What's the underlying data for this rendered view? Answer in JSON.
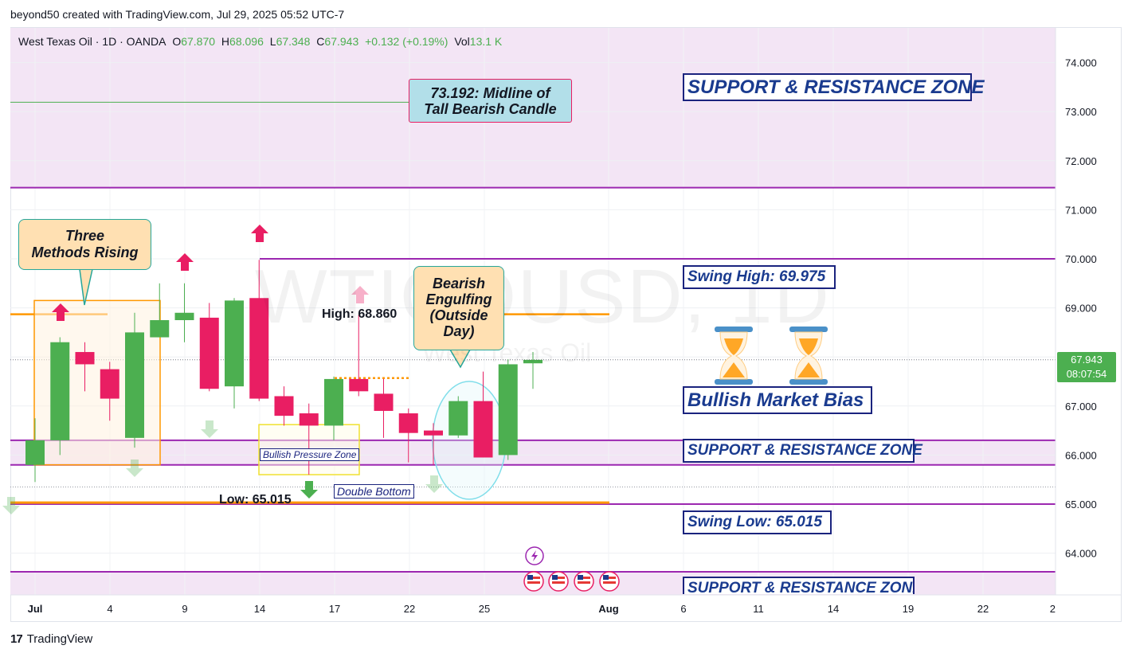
{
  "credit": "beyond50 created with TradingView.com, Jul 29, 2025 05:52 UTC-7",
  "legend": {
    "symbol": "West Texas Oil · 1D · OANDA",
    "open_label": "O",
    "open": "67.870",
    "high_label": "H",
    "high": "68.096",
    "low_label": "L",
    "low": "67.348",
    "close_label": "C",
    "close": "67.943",
    "change": "+0.132 (+0.19%)",
    "vol_label": "Vol",
    "vol": "13.1 K"
  },
  "watermark": {
    "symbol": "WTICOUSD, 1D",
    "name": "West Texas Oil"
  },
  "price_tag": {
    "price": "67.943",
    "countdown": "08:07:54"
  },
  "footer": {
    "logo": "17",
    "brand": "TradingView"
  },
  "annotations": {
    "midline": "73.192: Midline of Tall Bearish Candle",
    "midline_l1": "73.192: Midline of",
    "midline_l2": "Tall Bearish Candle",
    "three_methods_l1": "Three",
    "three_methods_l2": "Methods Rising",
    "bearish_l1": "Bearish",
    "bearish_l2": "Engulfing",
    "bearish_l3": "(Outside",
    "bearish_l4": "Day)",
    "high_label": "High: 68.860",
    "low_label": "Low: 65.015",
    "bullish_pressure": "Bullish Pressure Zone",
    "double_bottom": "Double Bottom",
    "sr_zone_top": "SUPPORT & RESISTANCE ZONE",
    "sr_zone_mid": "SUPPORT & RESISTANCE ZONE",
    "sr_zone_bottom": "SUPPORT & RESISTANCE ZONE",
    "swing_high": "Swing High: 69.975",
    "swing_low": "Swing Low: 65.015",
    "bias": "Bullish Market Bias"
  },
  "colors": {
    "up": "#4caf50",
    "down": "#e91e63",
    "zone": "#f3e5f5",
    "sr_line": "#9c27b0",
    "orange": "#ff9800",
    "navy": "#1a237e"
  },
  "chart_data": {
    "type": "candlestick",
    "symbol": "West Texas Oil · 1D · OANDA",
    "ylim": [
      63.3,
      74.65
    ],
    "y_ticks": [
      "64.000",
      "65.000",
      "66.000",
      "67.000",
      "68.000",
      "69.000",
      "70.000",
      "71.000",
      "72.000",
      "73.000",
      "74.000"
    ],
    "x_ticks": [
      "Jul",
      "4",
      "9",
      "14",
      "17",
      "22",
      "25",
      "Aug",
      "6",
      "11",
      "14",
      "19",
      "22",
      "2"
    ],
    "candles": [
      {
        "t": 0,
        "o": 65.8,
        "h": 66.75,
        "l": 65.45,
        "c": 66.3
      },
      {
        "t": 1,
        "o": 66.3,
        "h": 68.4,
        "l": 66.0,
        "c": 68.3
      },
      {
        "t": 2,
        "o": 68.1,
        "h": 68.3,
        "l": 67.3,
        "c": 67.85
      },
      {
        "t": 3,
        "o": 67.75,
        "h": 67.9,
        "l": 66.7,
        "c": 67.15
      },
      {
        "t": 4,
        "o": 66.35,
        "h": 68.9,
        "l": 66.15,
        "c": 68.5
      },
      {
        "t": 5,
        "o": 68.4,
        "h": 69.5,
        "l": 68.4,
        "c": 68.75
      },
      {
        "t": 6,
        "o": 68.75,
        "h": 69.5,
        "l": 68.3,
        "c": 68.9
      },
      {
        "t": 7,
        "o": 68.8,
        "h": 69.1,
        "l": 67.3,
        "c": 67.35
      },
      {
        "t": 8,
        "o": 67.4,
        "h": 69.2,
        "l": 66.95,
        "c": 69.15
      },
      {
        "t": 9,
        "o": 69.2,
        "h": 69.98,
        "l": 67.1,
        "c": 67.15
      },
      {
        "t": 10,
        "o": 67.2,
        "h": 67.4,
        "l": 66.6,
        "c": 66.8
      },
      {
        "t": 11,
        "o": 66.85,
        "h": 67.05,
        "l": 65.6,
        "c": 66.6
      },
      {
        "t": 12,
        "o": 66.6,
        "h": 67.6,
        "l": 66.3,
        "c": 67.55
      },
      {
        "t": 13,
        "o": 67.55,
        "h": 68.86,
        "l": 67.2,
        "c": 67.3
      },
      {
        "t": 14,
        "o": 67.25,
        "h": 67.55,
        "l": 66.35,
        "c": 66.9
      },
      {
        "t": 15,
        "o": 66.85,
        "h": 66.95,
        "l": 65.85,
        "c": 66.45
      },
      {
        "t": 16,
        "o": 66.5,
        "h": 66.65,
        "l": 65.8,
        "c": 66.4
      },
      {
        "t": 17,
        "o": 66.4,
        "h": 67.2,
        "l": 66.35,
        "c": 67.1
      },
      {
        "t": 18,
        "o": 67.1,
        "h": 67.7,
        "l": 65.95,
        "c": 65.95
      },
      {
        "t": 19,
        "o": 66.0,
        "h": 67.95,
        "l": 65.9,
        "c": 67.85
      },
      {
        "t": 20,
        "o": 67.87,
        "h": 68.1,
        "l": 67.35,
        "c": 67.94
      }
    ],
    "levels": [
      {
        "label": "73.192: Midline of Tall Bearish Candle",
        "value": 73.192
      },
      {
        "label": "Swing High: 69.975",
        "value": 69.975
      },
      {
        "label": "Swing Low: 65.015",
        "value": 65.015
      },
      {
        "label": "High: 68.860",
        "value": 68.86
      }
    ],
    "current_price": 67.943,
    "grid": true
  }
}
